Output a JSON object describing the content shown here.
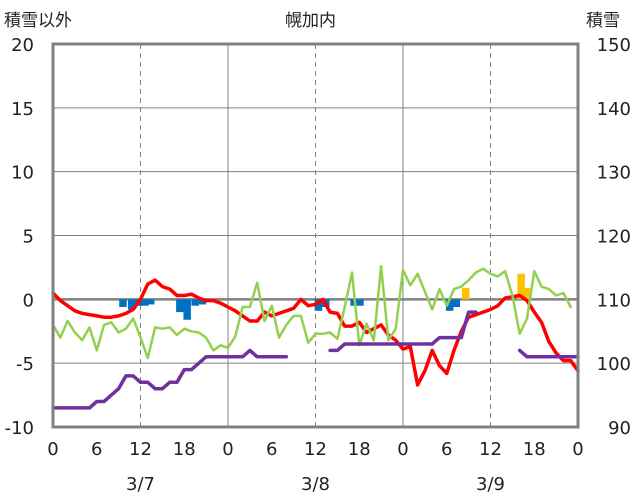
{
  "header": {
    "left_label": "積雪以外",
    "title": "幌加内",
    "right_label": "積雪"
  },
  "chart_data": {
    "type": "line",
    "title": "幌加内",
    "left_axis": {
      "label": "積雪以外",
      "ylim": [
        -10,
        20
      ],
      "ticks": [
        -10,
        -5,
        0,
        5,
        10,
        15,
        20
      ]
    },
    "right_axis": {
      "label": "積雪",
      "ylim": [
        90,
        150
      ],
      "ticks": [
        90,
        100,
        110,
        120,
        130,
        140,
        150
      ]
    },
    "x_axis": {
      "range_hours": [
        0,
        72
      ],
      "tick_labels": [
        "0",
        "6",
        "12",
        "18",
        "0",
        "6",
        "12",
        "18",
        "0",
        "6",
        "12",
        "18",
        "0"
      ],
      "date_labels": [
        {
          "label": "3/7",
          "hour": 12
        },
        {
          "label": "3/8",
          "hour": 36
        },
        {
          "label": "3/9",
          "hour": 60
        }
      ],
      "major_gridlines_hours": [
        24,
        48
      ],
      "minor_gridlines_hours": [
        12,
        36,
        60
      ]
    },
    "grid": true,
    "colors": {
      "red": "#ff0000",
      "green": "#92d050",
      "purple": "#7030a0",
      "blue": "#0070c0",
      "orange": "#ffc000",
      "frame": "#808080"
    },
    "series": [
      {
        "color": "#ff0000",
        "axis": "left",
        "points": [
          [
            0,
            0.5
          ],
          [
            1,
            -0.1
          ],
          [
            2,
            -0.5
          ],
          [
            3,
            -0.9
          ],
          [
            4,
            -1.1
          ],
          [
            5,
            -1.2
          ],
          [
            6,
            -1.3
          ],
          [
            7,
            -1.4
          ],
          [
            8,
            -1.4
          ],
          [
            9,
            -1.3
          ],
          [
            10,
            -1.1
          ],
          [
            11,
            -0.8
          ],
          [
            12,
            0
          ],
          [
            13,
            1.2
          ],
          [
            14,
            1.5
          ],
          [
            15,
            1
          ],
          [
            16,
            0.8
          ],
          [
            17,
            0.3
          ],
          [
            18,
            0.3
          ],
          [
            19,
            0.4
          ],
          [
            20,
            0.1
          ],
          [
            21,
            -0.1
          ],
          [
            22,
            -0.1
          ],
          [
            23,
            -0.3
          ],
          [
            24,
            -0.6
          ],
          [
            25,
            -0.9
          ],
          [
            26,
            -1.3
          ],
          [
            27,
            -1.7
          ],
          [
            28,
            -1.7
          ],
          [
            29,
            -1
          ],
          [
            30,
            -1.3
          ],
          [
            31,
            -1.1
          ],
          [
            32,
            -0.9
          ],
          [
            33,
            -0.7
          ],
          [
            34,
            0
          ],
          [
            35,
            -0.5
          ],
          [
            36,
            -0.4
          ],
          [
            37,
            0
          ],
          [
            38,
            -1
          ],
          [
            39,
            -1.1
          ],
          [
            40,
            -2.1
          ],
          [
            41,
            -2.1
          ],
          [
            42,
            -1.8
          ],
          [
            43,
            -2.6
          ],
          [
            44,
            -2.3
          ],
          [
            45,
            -2
          ],
          [
            46,
            -2.8
          ],
          [
            47,
            -3.2
          ],
          [
            48,
            -3.9
          ],
          [
            49,
            -3.7
          ],
          [
            50,
            -6.7
          ],
          [
            51,
            -5.6
          ],
          [
            52,
            -4
          ],
          [
            53,
            -5.2
          ],
          [
            54,
            -5.8
          ],
          [
            55,
            -4
          ],
          [
            56,
            -2.5
          ],
          [
            57,
            -1.4
          ],
          [
            58,
            -1.2
          ],
          [
            59,
            -1
          ],
          [
            60,
            -0.8
          ],
          [
            61,
            -0.5
          ],
          [
            62,
            0.1
          ],
          [
            63,
            0.2
          ],
          [
            64,
            0.3
          ],
          [
            65,
            -0.1
          ],
          [
            66,
            -1
          ],
          [
            67,
            -1.8
          ],
          [
            68,
            -3.3
          ],
          [
            69,
            -4.2
          ],
          [
            70,
            -4.8
          ],
          [
            71,
            -4.8
          ],
          [
            72,
            -5.6
          ]
        ]
      },
      {
        "color": "#92d050",
        "axis": "left",
        "points": [
          [
            0,
            -2
          ],
          [
            1,
            -3
          ],
          [
            2,
            -1.7
          ],
          [
            3,
            -2.6
          ],
          [
            4,
            -3.2
          ],
          [
            5,
            -2.2
          ],
          [
            6,
            -4
          ],
          [
            7,
            -2
          ],
          [
            8,
            -1.8
          ],
          [
            9,
            -2.6
          ],
          [
            10,
            -2.3
          ],
          [
            11,
            -1.5
          ],
          [
            12,
            -3
          ],
          [
            13,
            -4.6
          ],
          [
            14,
            -2.2
          ],
          [
            15,
            -2.3
          ],
          [
            16,
            -2.2
          ],
          [
            17,
            -2.8
          ],
          [
            18,
            -2.3
          ],
          [
            19,
            -2.5
          ],
          [
            20,
            -2.6
          ],
          [
            21,
            -3
          ],
          [
            22,
            -4
          ],
          [
            23,
            -3.6
          ],
          [
            24,
            -3.8
          ],
          [
            25,
            -2.9
          ],
          [
            26,
            -0.6
          ],
          [
            27,
            -0.6
          ],
          [
            28,
            1.3
          ],
          [
            29,
            -1.7
          ],
          [
            30,
            -0.5
          ],
          [
            31,
            -3
          ],
          [
            32,
            -2
          ],
          [
            33,
            -1.3
          ],
          [
            34,
            -1.3
          ],
          [
            35,
            -3.4
          ],
          [
            36,
            -2.7
          ],
          [
            37,
            -2.7
          ],
          [
            38,
            -2.6
          ],
          [
            39,
            -3.1
          ],
          [
            40,
            -0.6
          ],
          [
            41,
            2.1
          ],
          [
            42,
            -3.6
          ],
          [
            43,
            -1.9
          ],
          [
            44,
            -3.2
          ],
          [
            45,
            2.6
          ],
          [
            46,
            -3.2
          ],
          [
            47,
            -2.3
          ],
          [
            48,
            2.3
          ],
          [
            49,
            1.1
          ],
          [
            50,
            2
          ],
          [
            51,
            0.6
          ],
          [
            52,
            -0.8
          ],
          [
            53,
            0.8
          ],
          [
            54,
            -0.5
          ],
          [
            55,
            0.8
          ],
          [
            56,
            1
          ],
          [
            57,
            1.5
          ],
          [
            58,
            2.1
          ],
          [
            59,
            2.4
          ],
          [
            60,
            2
          ],
          [
            61,
            1.8
          ],
          [
            62,
            2.2
          ],
          [
            63,
            0.3
          ],
          [
            64,
            -2.7
          ],
          [
            65,
            -1.5
          ],
          [
            66,
            2.2
          ],
          [
            67,
            1
          ],
          [
            68,
            0.8
          ],
          [
            69,
            0.3
          ],
          [
            70,
            0.5
          ],
          [
            71,
            -0.6
          ]
        ]
      },
      {
        "color": "#7030a0",
        "axis": "right",
        "segments": [
          [
            [
              0,
              93
            ],
            [
              5,
              93
            ],
            [
              6,
              94
            ],
            [
              7,
              94
            ],
            [
              8,
              95
            ],
            [
              9,
              96
            ],
            [
              10,
              98
            ],
            [
              11,
              98
            ],
            [
              12,
              97
            ],
            [
              13,
              97
            ],
            [
              14,
              96
            ],
            [
              15,
              96
            ],
            [
              16,
              97
            ],
            [
              17,
              97
            ],
            [
              18,
              99
            ],
            [
              19,
              99
            ],
            [
              20,
              100
            ],
            [
              21,
              101
            ],
            [
              22,
              101
            ],
            [
              23,
              101
            ],
            [
              24,
              101
            ],
            [
              25,
              101
            ],
            [
              26,
              101
            ],
            [
              27,
              102
            ],
            [
              28,
              101
            ],
            [
              29,
              101
            ],
            [
              30,
              101
            ],
            [
              31,
              101
            ],
            [
              32,
              101
            ]
          ],
          [
            [
              38,
              102
            ],
            [
              39,
              102
            ],
            [
              40,
              103
            ],
            [
              41,
              103
            ],
            [
              42,
              103
            ],
            [
              43,
              103
            ],
            [
              44,
              103
            ],
            [
              45,
              103
            ],
            [
              46,
              103
            ],
            [
              47,
              103
            ],
            [
              48,
              103
            ],
            [
              49,
              103
            ],
            [
              50,
              103
            ],
            [
              51,
              103
            ],
            [
              52,
              103
            ],
            [
              53,
              104
            ],
            [
              54,
              104
            ],
            [
              55,
              104
            ],
            [
              56,
              104
            ],
            [
              57,
              108
            ],
            [
              58,
              108
            ]
          ],
          [
            [
              64,
              102
            ],
            [
              65,
              101
            ],
            [
              66,
              101
            ],
            [
              67,
              101
            ],
            [
              68,
              101
            ],
            [
              69,
              101
            ],
            [
              70,
              101
            ],
            [
              71,
              101
            ],
            [
              72,
              101
            ]
          ]
        ]
      }
    ],
    "bars": [
      {
        "color": "#0070c0",
        "axis": "left",
        "bars": [
          [
            9.6,
            -0.6
          ],
          [
            10.8,
            -0.8
          ],
          [
            11.8,
            -0.5
          ],
          [
            12.6,
            -0.5
          ],
          [
            13.4,
            -0.4
          ],
          [
            17.4,
            -1
          ],
          [
            18.4,
            -1.6
          ],
          [
            19.5,
            -0.5
          ],
          [
            20.5,
            -0.4
          ],
          [
            36.4,
            -0.9
          ],
          [
            37.4,
            -0.6
          ],
          [
            41.3,
            -0.5
          ],
          [
            42.1,
            -0.5
          ],
          [
            54.4,
            -0.9
          ],
          [
            55.3,
            -0.6
          ]
        ]
      },
      {
        "color": "#ffc000",
        "axis": "left",
        "bars": [
          [
            56.6,
            0.9
          ],
          [
            64.2,
            2
          ],
          [
            64.9,
            0.9
          ]
        ]
      }
    ]
  }
}
